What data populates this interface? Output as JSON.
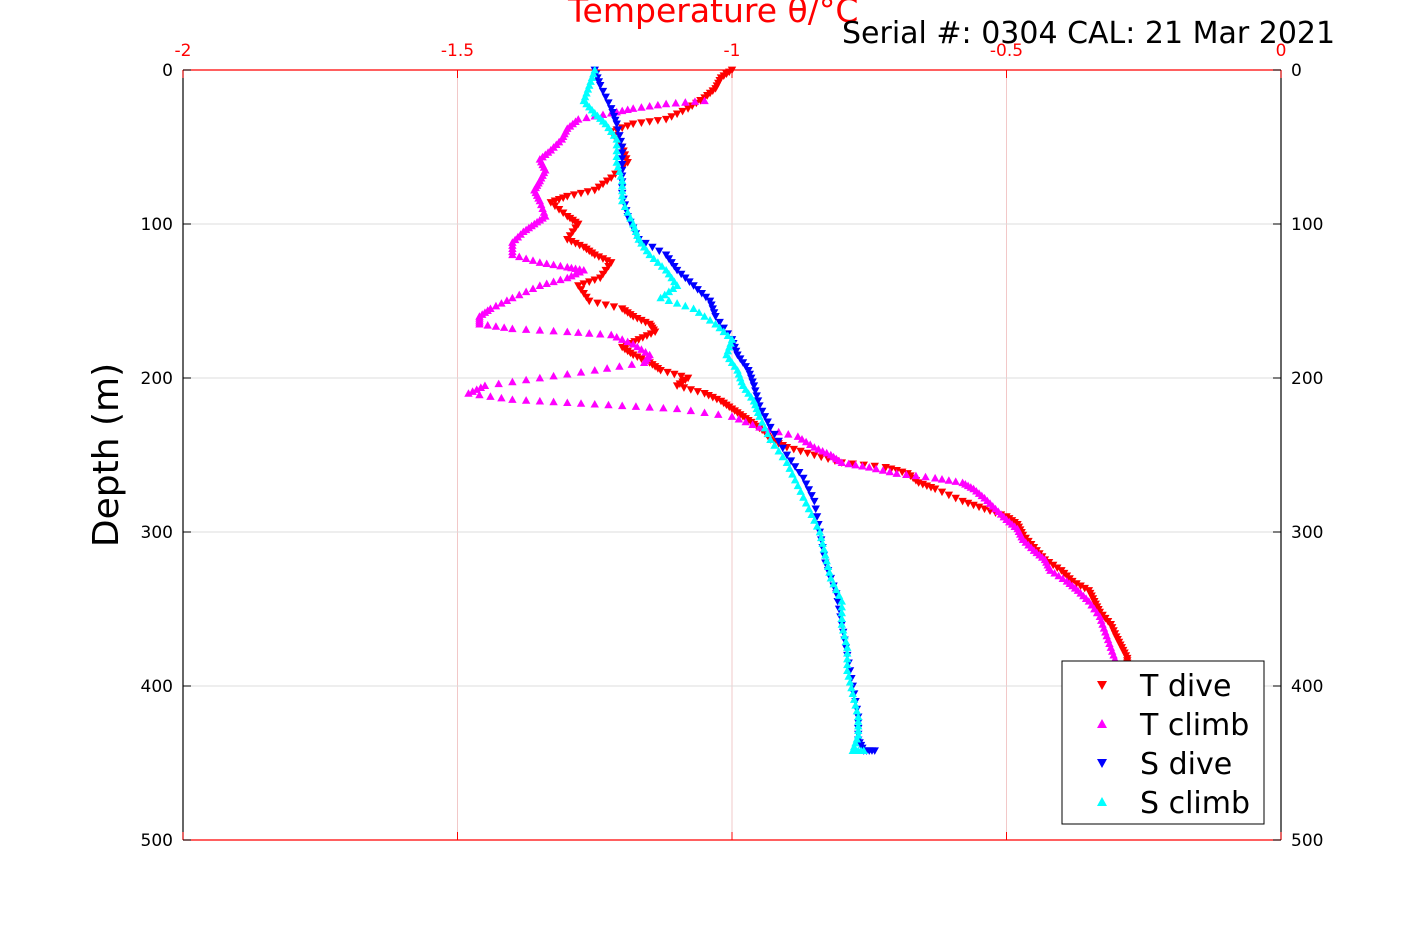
{
  "header": {
    "serial_text": "Serial #: 0304  CAL: 21 Mar 2021"
  },
  "chart_data": {
    "type": "scatter",
    "title": "Temperature θ/°C",
    "xlabel": "Temperature θ/°C",
    "ylabel": "Depth (m)",
    "xlim": [
      -2,
      0
    ],
    "ylim": [
      0,
      500
    ],
    "y_reversed": true,
    "x_axis_position": "top",
    "x_ticks": [
      -2,
      -1.5,
      -1,
      -0.5,
      0
    ],
    "x_tick_labels": [
      "-2",
      "-1.5",
      "-1",
      "-0.5",
      "0"
    ],
    "y_ticks": [
      0,
      100,
      200,
      300,
      400,
      500
    ],
    "y_tick_labels": [
      "0",
      "100",
      "200",
      "300",
      "400",
      "500"
    ],
    "grid": true,
    "legend_position": "bottom-right",
    "series": [
      {
        "name": "T dive",
        "color": "#ff0000",
        "marker": "triangle-down",
        "points": [
          [
            -1.0,
            0
          ],
          [
            -1.02,
            5
          ],
          [
            -1.03,
            12
          ],
          [
            -1.05,
            18
          ],
          [
            -1.08,
            25
          ],
          [
            -1.12,
            32
          ],
          [
            -1.18,
            35
          ],
          [
            -1.22,
            40
          ],
          [
            -1.2,
            50
          ],
          [
            -1.19,
            60
          ],
          [
            -1.22,
            70
          ],
          [
            -1.25,
            78
          ],
          [
            -1.3,
            82
          ],
          [
            -1.33,
            86
          ],
          [
            -1.3,
            95
          ],
          [
            -1.28,
            100
          ],
          [
            -1.3,
            110
          ],
          [
            -1.27,
            115
          ],
          [
            -1.25,
            120
          ],
          [
            -1.22,
            125
          ],
          [
            -1.24,
            135
          ],
          [
            -1.28,
            140
          ],
          [
            -1.26,
            150
          ],
          [
            -1.2,
            155
          ],
          [
            -1.18,
            160
          ],
          [
            -1.15,
            165
          ],
          [
            -1.14,
            170
          ],
          [
            -1.17,
            175
          ],
          [
            -1.2,
            180
          ],
          [
            -1.18,
            185
          ],
          [
            -1.15,
            190
          ],
          [
            -1.13,
            195
          ],
          [
            -1.08,
            200
          ],
          [
            -1.1,
            205
          ],
          [
            -1.05,
            210
          ],
          [
            -1.02,
            215
          ],
          [
            -1.0,
            220
          ],
          [
            -0.98,
            225
          ],
          [
            -0.96,
            230
          ],
          [
            -0.94,
            235
          ],
          [
            -0.93,
            240
          ],
          [
            -0.9,
            245
          ],
          [
            -0.85,
            250
          ],
          [
            -0.8,
            255
          ],
          [
            -0.72,
            258
          ],
          [
            -0.68,
            262
          ],
          [
            -0.66,
            268
          ],
          [
            -0.63,
            272
          ],
          [
            -0.58,
            280
          ],
          [
            -0.54,
            285
          ],
          [
            -0.5,
            290
          ],
          [
            -0.48,
            295
          ],
          [
            -0.47,
            302
          ],
          [
            -0.45,
            310
          ],
          [
            -0.43,
            318
          ],
          [
            -0.4,
            325
          ],
          [
            -0.38,
            332
          ],
          [
            -0.35,
            338
          ],
          [
            -0.34,
            345
          ],
          [
            -0.33,
            352
          ],
          [
            -0.31,
            360
          ],
          [
            -0.3,
            368
          ],
          [
            -0.29,
            375
          ],
          [
            -0.28,
            382
          ],
          [
            -0.28,
            388
          ]
        ]
      },
      {
        "name": "T climb",
        "color": "#ff00ff",
        "marker": "triangle-up",
        "points": [
          [
            -1.05,
            20
          ],
          [
            -1.12,
            22
          ],
          [
            -1.18,
            25
          ],
          [
            -1.22,
            28
          ],
          [
            -1.28,
            32
          ],
          [
            -1.3,
            38
          ],
          [
            -1.31,
            45
          ],
          [
            -1.33,
            52
          ],
          [
            -1.35,
            58
          ],
          [
            -1.34,
            65
          ],
          [
            -1.35,
            72
          ],
          [
            -1.36,
            78
          ],
          [
            -1.35,
            85
          ],
          [
            -1.34,
            95
          ],
          [
            -1.36,
            100
          ],
          [
            -1.38,
            105
          ],
          [
            -1.4,
            112
          ],
          [
            -1.4,
            120
          ],
          [
            -1.35,
            125
          ],
          [
            -1.3,
            128
          ],
          [
            -1.27,
            130
          ],
          [
            -1.3,
            135
          ],
          [
            -1.35,
            140
          ],
          [
            -1.4,
            148
          ],
          [
            -1.44,
            155
          ],
          [
            -1.46,
            160
          ],
          [
            -1.46,
            165
          ],
          [
            -1.4,
            168
          ],
          [
            -1.3,
            170
          ],
          [
            -1.22,
            172
          ],
          [
            -1.18,
            178
          ],
          [
            -1.15,
            185
          ],
          [
            -1.16,
            190
          ],
          [
            -1.25,
            195
          ],
          [
            -1.35,
            200
          ],
          [
            -1.45,
            205
          ],
          [
            -1.48,
            210
          ],
          [
            -1.4,
            214
          ],
          [
            -1.3,
            216
          ],
          [
            -1.2,
            218
          ],
          [
            -1.1,
            220
          ],
          [
            -1.0,
            225
          ],
          [
            -0.95,
            232
          ],
          [
            -0.88,
            238
          ],
          [
            -0.85,
            245
          ],
          [
            -0.82,
            250
          ],
          [
            -0.8,
            255
          ],
          [
            -0.75,
            258
          ],
          [
            -0.7,
            262
          ],
          [
            -0.63,
            265
          ],
          [
            -0.58,
            268
          ],
          [
            -0.56,
            272
          ],
          [
            -0.54,
            278
          ],
          [
            -0.52,
            285
          ],
          [
            -0.5,
            292
          ],
          [
            -0.48,
            298
          ],
          [
            -0.47,
            305
          ],
          [
            -0.45,
            312
          ],
          [
            -0.43,
            318
          ],
          [
            -0.42,
            325
          ],
          [
            -0.39,
            332
          ],
          [
            -0.37,
            338
          ],
          [
            -0.35,
            345
          ],
          [
            -0.33,
            355
          ],
          [
            -0.32,
            365
          ],
          [
            -0.31,
            375
          ],
          [
            -0.3,
            385
          ]
        ]
      },
      {
        "name": "S dive",
        "color": "#0000ff",
        "marker": "triangle-down",
        "points": [
          [
            -1.25,
            0
          ],
          [
            -1.24,
            10
          ],
          [
            -1.22,
            25
          ],
          [
            -1.21,
            35
          ],
          [
            -1.2,
            50
          ],
          [
            -1.2,
            65
          ],
          [
            -1.2,
            80
          ],
          [
            -1.19,
            95
          ],
          [
            -1.17,
            110
          ],
          [
            -1.12,
            120
          ],
          [
            -1.1,
            130
          ],
          [
            -1.07,
            140
          ],
          [
            -1.04,
            150
          ],
          [
            -1.03,
            160
          ],
          [
            -1.0,
            175
          ],
          [
            -0.99,
            185
          ],
          [
            -0.97,
            195
          ],
          [
            -0.96,
            205
          ],
          [
            -0.95,
            218
          ],
          [
            -0.93,
            232
          ],
          [
            -0.9,
            250
          ],
          [
            -0.87,
            265
          ],
          [
            -0.85,
            280
          ],
          [
            -0.84,
            300
          ],
          [
            -0.83,
            320
          ],
          [
            -0.81,
            340
          ],
          [
            -0.8,
            360
          ],
          [
            -0.79,
            380
          ],
          [
            -0.78,
            400
          ],
          [
            -0.77,
            420
          ],
          [
            -0.77,
            435
          ],
          [
            -0.76,
            442
          ],
          [
            -0.74,
            442
          ]
        ]
      },
      {
        "name": "S climb",
        "color": "#00ffff",
        "marker": "triangle-up",
        "points": [
          [
            -1.25,
            0
          ],
          [
            -1.26,
            10
          ],
          [
            -1.27,
            20
          ],
          [
            -1.25,
            28
          ],
          [
            -1.23,
            35
          ],
          [
            -1.21,
            45
          ],
          [
            -1.21,
            60
          ],
          [
            -1.2,
            72
          ],
          [
            -1.2,
            85
          ],
          [
            -1.18,
            100
          ],
          [
            -1.17,
            110
          ],
          [
            -1.15,
            120
          ],
          [
            -1.12,
            130
          ],
          [
            -1.1,
            140
          ],
          [
            -1.13,
            148
          ],
          [
            -1.07,
            155
          ],
          [
            -1.03,
            165
          ],
          [
            -1.0,
            175
          ],
          [
            -1.01,
            185
          ],
          [
            -0.99,
            195
          ],
          [
            -0.98,
            205
          ],
          [
            -0.96,
            215
          ],
          [
            -0.95,
            225
          ],
          [
            -0.93,
            240
          ],
          [
            -0.9,
            255
          ],
          [
            -0.88,
            270
          ],
          [
            -0.86,
            285
          ],
          [
            -0.84,
            300
          ],
          [
            -0.83,
            315
          ],
          [
            -0.82,
            330
          ],
          [
            -0.8,
            345
          ],
          [
            -0.8,
            360
          ],
          [
            -0.79,
            375
          ],
          [
            -0.79,
            390
          ],
          [
            -0.78,
            405
          ],
          [
            -0.77,
            420
          ],
          [
            -0.77,
            432
          ],
          [
            -0.78,
            442
          ],
          [
            -0.76,
            442
          ]
        ]
      }
    ]
  }
}
